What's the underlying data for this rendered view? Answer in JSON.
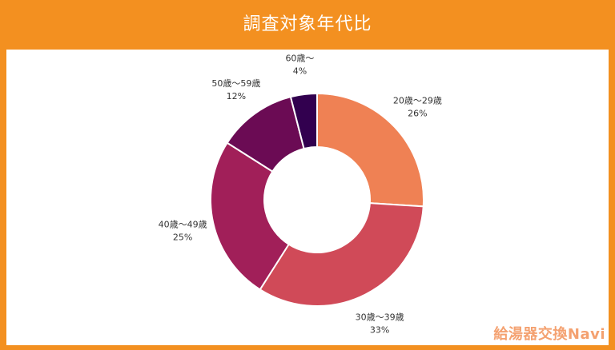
{
  "header": {
    "title": "調査対象年代比"
  },
  "brand": {
    "label": "給湯器交換Navi"
  },
  "chart_data": {
    "type": "pie",
    "donut": true,
    "start_angle_deg": 0,
    "direction": "clockwise",
    "slices": [
      {
        "label": "20歳〜29歳",
        "value": 26,
        "display": "26%",
        "color": "#ef8154"
      },
      {
        "label": "30歳〜39歳",
        "value": 33,
        "display": "33%",
        "color": "#d04a58"
      },
      {
        "label": "40歳〜49歳",
        "value": 25,
        "display": "25%",
        "color": "#a11f59"
      },
      {
        "label": "50歳〜59歳",
        "value": 12,
        "display": "12%",
        "color": "#6b0b54"
      },
      {
        "label": "60歳〜",
        "value": 4,
        "display": "4%",
        "color": "#32004f"
      }
    ]
  }
}
